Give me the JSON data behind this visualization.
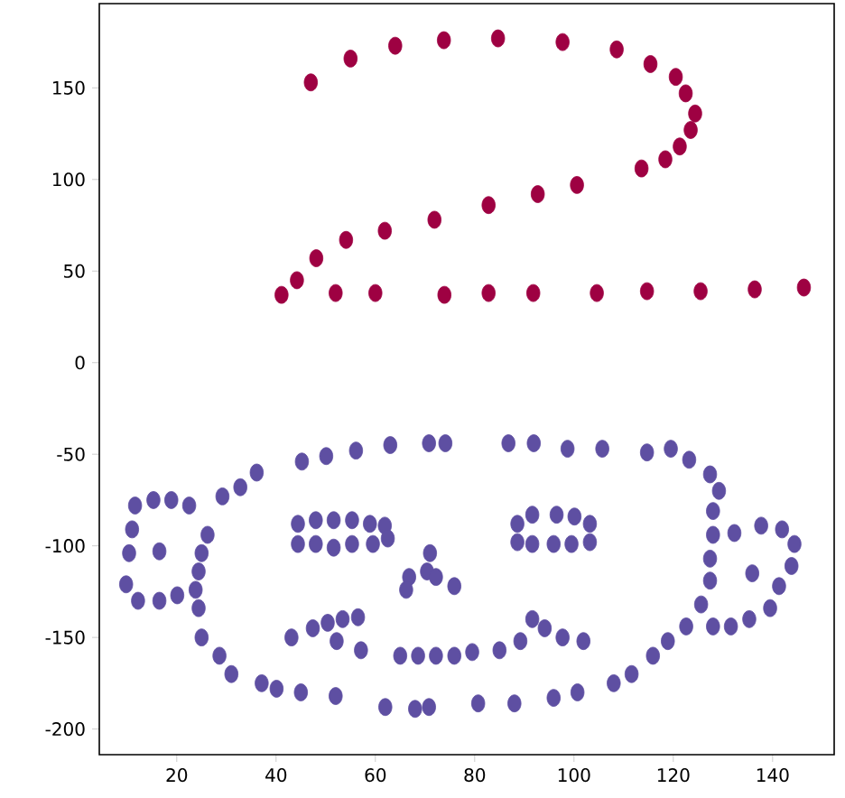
{
  "chart_data": {
    "type": "scatter",
    "marker": "circle",
    "xlim": [
      4.4,
      152.4
    ],
    "ylim": [
      -214,
      196
    ],
    "xticks": [
      20,
      40,
      60,
      80,
      100,
      120,
      140
    ],
    "yticks": [
      -200,
      -150,
      -100,
      -50,
      0,
      50,
      100,
      150
    ],
    "series": [
      {
        "color": "#9e0142",
        "x": [
          47.0,
          55.0,
          64.0,
          73.8,
          84.7,
          97.7,
          108.6,
          115.4,
          120.5,
          122.5,
          124.4,
          123.5,
          121.3,
          118.4,
          113.6,
          100.6,
          92.7,
          82.8,
          71.9,
          61.9,
          54.1,
          48.1,
          44.2,
          41.1,
          52.0,
          60.0,
          73.9,
          82.8,
          91.8,
          104.6,
          114.7,
          125.5,
          136.4,
          146.3
        ],
        "values": [
          153,
          166,
          173,
          176,
          177,
          175,
          171,
          163,
          156,
          147,
          136,
          127,
          118,
          111,
          106,
          97,
          92,
          86,
          78,
          72,
          67,
          57,
          45,
          37,
          38,
          38,
          37,
          38,
          38,
          38,
          39,
          39,
          40,
          41
        ]
      },
      {
        "color": "#5e4fa2",
        "x": [
          45.2,
          50.1,
          56.1,
          63.0,
          70.8,
          74.1,
          11.6,
          15.3,
          18.9,
          22.5,
          11.0,
          10.4,
          9.8,
          12.2,
          16.5,
          20.1,
          23.8,
          24.4,
          25.0,
          26.2,
          16.5,
          29.2,
          32.8,
          36.1,
          24.4,
          25.0,
          28.6,
          31.0,
          37.1,
          40.1,
          45.0,
          52.0,
          62.0,
          68.0,
          70.8,
          44.4,
          48.0,
          51.6,
          55.3,
          58.9,
          61.9,
          44.4,
          48.0,
          51.6,
          55.3,
          59.5,
          62.5,
          71.0,
          70.4,
          66.8,
          66.2,
          75.9,
          72.2,
          43.1,
          47.4,
          50.4,
          53.4,
          56.5,
          52.2,
          57.1,
          65.0,
          68.6,
          72.2,
          75.9,
          79.5,
          86.8,
          91.9,
          98.7,
          105.7,
          114.7,
          119.5,
          123.2,
          127.4,
          129.2,
          88.6,
          91.6,
          96.5,
          100.1,
          103.2,
          88.6,
          91.6,
          95.9,
          99.5,
          103.2,
          128.0,
          128.0,
          127.4,
          127.4,
          125.6,
          122.6,
          118.9,
          115.9,
          111.6,
          108.0,
          132.3,
          137.7,
          141.9,
          144.4,
          143.8,
          141.3,
          139.5,
          135.3,
          131.6,
          128.0,
          135.9,
          85.0,
          89.2,
          91.6,
          94.1,
          97.7,
          101.9,
          80.7,
          88.0,
          95.9,
          100.7
        ],
        "values": [
          -54,
          -51,
          -48,
          -45,
          -44,
          -44,
          -78,
          -75,
          -75,
          -78,
          -91,
          -104,
          -121,
          -130,
          -130,
          -127,
          -124,
          -114,
          -104,
          -94,
          -103,
          -73,
          -68,
          -60,
          -134,
          -150,
          -160,
          -170,
          -175,
          -178,
          -180,
          -182,
          -188,
          -189,
          -188,
          -88,
          -86,
          -86,
          -86,
          -88,
          -89,
          -99,
          -99,
          -101,
          -99,
          -99,
          -96,
          -104,
          -114,
          -117,
          -124,
          -122,
          -117,
          -150,
          -145,
          -142,
          -140,
          -139,
          -152,
          -157,
          -160,
          -160,
          -160,
          -160,
          -158,
          -44,
          -44,
          -47,
          -47,
          -49,
          -47,
          -53,
          -61,
          -70,
          -88,
          -83,
          -83,
          -84,
          -88,
          -98,
          -99,
          -99,
          -99,
          -98,
          -81,
          -94,
          -107,
          -119,
          -132,
          -144,
          -152,
          -160,
          -170,
          -175,
          -93,
          -89,
          -91,
          -99,
          -111,
          -122,
          -134,
          -140,
          -144,
          -144,
          -115,
          -157,
          -152,
          -140,
          -145,
          -150,
          -152,
          -186,
          -186,
          -183,
          -180
        ]
      }
    ]
  }
}
